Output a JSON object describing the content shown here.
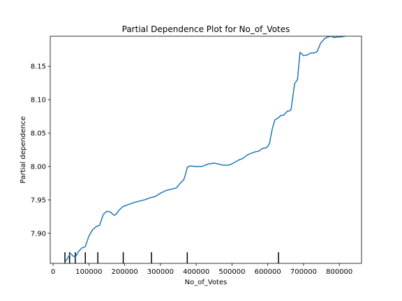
{
  "chart_data": {
    "type": "line",
    "title": "Partial Dependence Plot for No_of_Votes",
    "xlabel": "No_of_Votes",
    "ylabel": "Partial dependence",
    "xlim": [
      -8000,
      862000
    ],
    "ylim": [
      7.855,
      8.195
    ],
    "xticks": [
      0,
      100000,
      200000,
      300000,
      400000,
      500000,
      600000,
      700000,
      800000
    ],
    "yticks": [
      7.9,
      7.95,
      8.0,
      8.05,
      8.1,
      8.15
    ],
    "ytick_decimals": 2,
    "grid": false,
    "line_color": "#1f77b4",
    "series": [
      {
        "x": [
          33000,
          40000,
          48000,
          56000,
          62000,
          70000,
          80000,
          90000,
          100000,
          110000,
          120000,
          130000,
          140000,
          150000,
          160000,
          170000,
          175000,
          185000,
          195000,
          205000,
          215000,
          225000,
          240000,
          255000,
          270000,
          285000,
          300000,
          315000,
          330000,
          345000,
          355000,
          365000,
          370000,
          375000,
          385000,
          395000,
          405000,
          415000,
          425000,
          435000,
          450000,
          460000,
          475000,
          490000,
          500000,
          510000,
          520000,
          530000,
          545000,
          555000,
          565000,
          575000,
          585000,
          595000,
          600000,
          605000,
          612000,
          620000,
          630000,
          635000,
          645000,
          655000,
          660000,
          665000,
          675000,
          683000,
          690000,
          700000,
          710000,
          720000,
          730000,
          738000,
          748000,
          758000,
          768000,
          778000,
          785000,
          795000,
          805000,
          815000,
          822000
        ],
        "y": [
          7.857,
          7.862,
          7.87,
          7.866,
          7.864,
          7.872,
          7.878,
          7.88,
          7.896,
          7.905,
          7.91,
          7.912,
          7.928,
          7.933,
          7.932,
          7.927,
          7.928,
          7.935,
          7.94,
          7.942,
          7.944,
          7.946,
          7.948,
          7.95,
          7.953,
          7.955,
          7.96,
          7.964,
          7.966,
          7.968,
          7.975,
          7.98,
          7.988,
          7.999,
          8.001,
          8.0,
          8.0,
          8.0,
          8.002,
          8.004,
          8.005,
          8.004,
          8.002,
          8.002,
          8.004,
          8.007,
          8.01,
          8.012,
          8.018,
          8.02,
          8.022,
          8.023,
          8.027,
          8.028,
          8.03,
          8.035,
          8.055,
          8.07,
          8.073,
          8.076,
          8.077,
          8.083,
          8.083,
          8.085,
          8.124,
          8.13,
          8.171,
          8.166,
          8.167,
          8.17,
          8.17,
          8.172,
          8.185,
          8.191,
          8.194,
          8.195,
          8.193,
          8.194,
          8.194,
          8.195,
          8.197
        ]
      }
    ],
    "rug_x": [
      33000,
      46000,
      62000,
      90000,
      125000,
      196000,
      275000,
      375000,
      630000
    ]
  }
}
